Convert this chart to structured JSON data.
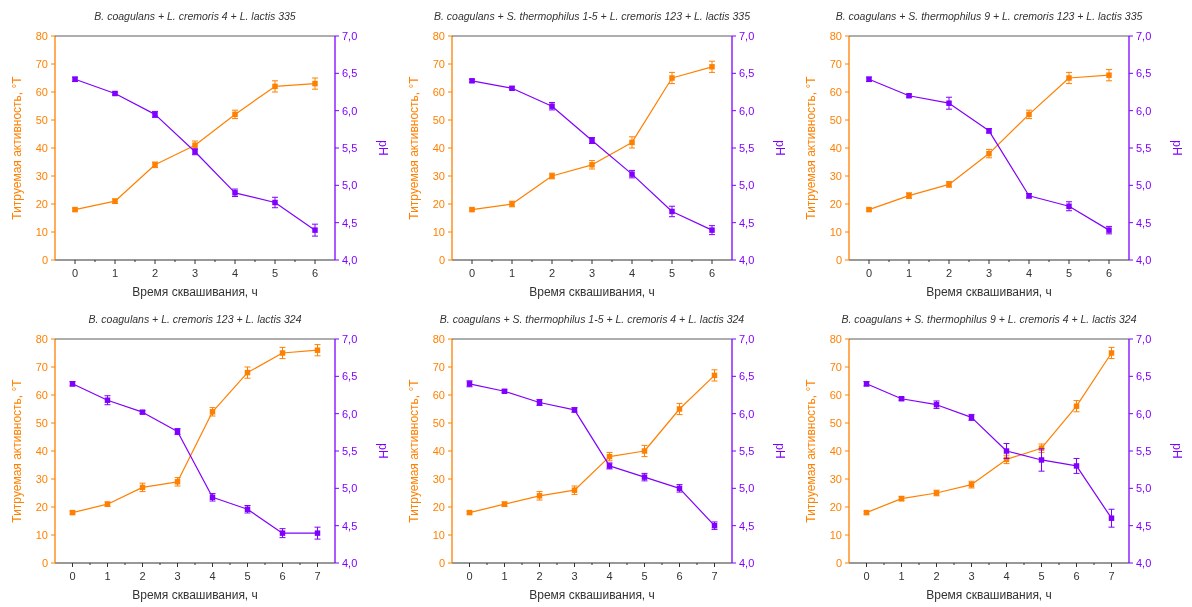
{
  "chart_data": [
    {
      "type": "line",
      "title": "B. coagulans + L. cremoris 4 + L. lactis 335",
      "xlabel": "Время сквашивания, ч",
      "ylabel": "Титруемая активность, °Т",
      "y2label": "pH",
      "x": [
        0,
        1,
        2,
        3,
        4,
        5,
        6
      ],
      "xlim": [
        -0.5,
        6.5
      ],
      "xticks": [
        0,
        1,
        2,
        3,
        4,
        5,
        6
      ],
      "ylim": [
        0,
        80
      ],
      "yticks": [
        0,
        10,
        20,
        30,
        40,
        50,
        60,
        70,
        80
      ],
      "y2lim": [
        4,
        7
      ],
      "y2ticks": [
        {
          "value": 4,
          "label": "4,0"
        },
        {
          "value": 4.5,
          "label": "4,5"
        },
        {
          "value": 5,
          "label": "5,0"
        },
        {
          "value": 5.5,
          "label": "5,5"
        },
        {
          "value": 6,
          "label": "6,0"
        },
        {
          "value": 6.5,
          "label": "6,5"
        },
        {
          "value": 7,
          "label": "7,0"
        }
      ],
      "marker": "square",
      "grid": false,
      "series": [
        {
          "color": "#ff8000",
          "values": [
            18,
            21,
            34,
            41,
            52,
            62,
            63
          ],
          "errors": [
            0.5,
            0.8,
            1,
            1.5,
            1.5,
            2,
            2
          ]
        },
        {
          "color": "#8000ff",
          "axis": "y2",
          "values": [
            6.42,
            6.23,
            5.95,
            5.45,
            4.9,
            4.77,
            4.4
          ],
          "errors": [
            0.03,
            0.02,
            0.04,
            0.04,
            0.05,
            0.07,
            0.08
          ]
        }
      ]
    },
    {
      "type": "line",
      "title": "B. coagulans + S. thermophilus 1-5 + L. cremoris 123 + L. lactis 335",
      "xlabel": "Время сквашивания, ч",
      "ylabel": "Титруемая активность, °Т",
      "y2label": "pH",
      "x": [
        0,
        1,
        2,
        3,
        4,
        5,
        6
      ],
      "xlim": [
        -0.5,
        6.5
      ],
      "xticks": [
        0,
        1,
        2,
        3,
        4,
        5,
        6
      ],
      "ylim": [
        0,
        80
      ],
      "yticks": [
        0,
        10,
        20,
        30,
        40,
        50,
        60,
        70,
        80
      ],
      "y2lim": [
        4,
        7
      ],
      "y2ticks": [
        {
          "value": 4,
          "label": "4,0"
        },
        {
          "value": 4.5,
          "label": "4,5"
        },
        {
          "value": 5,
          "label": "5,0"
        },
        {
          "value": 5.5,
          "label": "5,5"
        },
        {
          "value": 6,
          "label": "6,0"
        },
        {
          "value": 6.5,
          "label": "6,5"
        },
        {
          "value": 7,
          "label": "7,0"
        }
      ],
      "marker": "square",
      "grid": false,
      "series": [
        {
          "color": "#ff8000",
          "values": [
            18,
            20,
            30,
            34,
            42,
            65,
            69
          ],
          "errors": [
            0.5,
            1,
            1,
            1.5,
            2,
            2,
            2
          ]
        },
        {
          "color": "#8000ff",
          "axis": "y2",
          "values": [
            6.4,
            6.3,
            6.06,
            5.6,
            5.15,
            4.65,
            4.4
          ],
          "errors": [
            0.02,
            0.02,
            0.05,
            0.04,
            0.05,
            0.07,
            0.06
          ]
        }
      ]
    },
    {
      "type": "line",
      "title": "B. coagulans + S. thermophilus 9 + L. cremoris 123 + L. lactis 335",
      "xlabel": "Время сквашивания, ч",
      "ylabel": "Титруемая активность, °Т",
      "y2label": "pH",
      "x": [
        0,
        1,
        2,
        3,
        4,
        5,
        6
      ],
      "xlim": [
        -0.5,
        6.5
      ],
      "xticks": [
        0,
        1,
        2,
        3,
        4,
        5,
        6
      ],
      "ylim": [
        0,
        80
      ],
      "yticks": [
        0,
        10,
        20,
        30,
        40,
        50,
        60,
        70,
        80
      ],
      "y2lim": [
        4,
        7
      ],
      "y2ticks": [
        {
          "value": 4,
          "label": "4,0"
        },
        {
          "value": 4.5,
          "label": "4,5"
        },
        {
          "value": 5,
          "label": "5,0"
        },
        {
          "value": 5.5,
          "label": "5,5"
        },
        {
          "value": 6,
          "label": "6,0"
        },
        {
          "value": 6.5,
          "label": "6,5"
        },
        {
          "value": 7,
          "label": "7,0"
        }
      ],
      "marker": "square",
      "grid": false,
      "series": [
        {
          "color": "#ff8000",
          "values": [
            18,
            23,
            27,
            38,
            52,
            65,
            66
          ],
          "errors": [
            0.5,
            1,
            1,
            1.5,
            1.5,
            2,
            2
          ]
        },
        {
          "color": "#8000ff",
          "axis": "y2",
          "values": [
            6.42,
            6.2,
            6.1,
            5.73,
            4.86,
            4.72,
            4.4
          ],
          "errors": [
            0.03,
            0.02,
            0.08,
            0.03,
            0.03,
            0.06,
            0.05
          ]
        }
      ]
    },
    {
      "type": "line",
      "title": "B. coagulans + L. cremoris 123 + L. lactis 324",
      "xlabel": "Время сквашивания, ч",
      "ylabel": "Титруемая активность, °Т",
      "y2label": "pH",
      "x": [
        0,
        1,
        2,
        3,
        4,
        5,
        6,
        7
      ],
      "xlim": [
        -0.5,
        7.5
      ],
      "xticks": [
        0,
        1,
        2,
        3,
        4,
        5,
        6,
        7
      ],
      "ylim": [
        0,
        80
      ],
      "yticks": [
        0,
        10,
        20,
        30,
        40,
        50,
        60,
        70,
        80
      ],
      "y2lim": [
        4,
        7
      ],
      "y2ticks": [
        {
          "value": 4,
          "label": "4,0"
        },
        {
          "value": 4.5,
          "label": "4,5"
        },
        {
          "value": 5,
          "label": "5,0"
        },
        {
          "value": 5.5,
          "label": "5,5"
        },
        {
          "value": 6,
          "label": "6,0"
        },
        {
          "value": 6.5,
          "label": "6,5"
        },
        {
          "value": 7,
          "label": "7,0"
        }
      ],
      "marker": "square",
      "grid": false,
      "series": [
        {
          "color": "#ff8000",
          "values": [
            18,
            21,
            27,
            29,
            54,
            68,
            75,
            76
          ],
          "errors": [
            0.5,
            0.8,
            1.5,
            1.5,
            1.5,
            2,
            2,
            2
          ]
        },
        {
          "color": "#8000ff",
          "axis": "y2",
          "values": [
            6.4,
            6.18,
            6.02,
            5.76,
            4.88,
            4.72,
            4.4,
            4.4
          ],
          "errors": [
            0.03,
            0.06,
            0.02,
            0.04,
            0.05,
            0.05,
            0.06,
            0.08
          ]
        }
      ]
    },
    {
      "type": "line",
      "title": "B. coagulans + S. thermophilus 1-5 + L. cremoris 4 + L. lactis 324",
      "xlabel": "Время сквашивания, ч",
      "ylabel": "Титруемая активность, °Т",
      "y2label": "pH",
      "x": [
        0,
        1,
        2,
        3,
        4,
        5,
        6,
        7
      ],
      "xlim": [
        -0.5,
        7.5
      ],
      "xticks": [
        0,
        1,
        2,
        3,
        4,
        5,
        6,
        7
      ],
      "ylim": [
        0,
        80
      ],
      "yticks": [
        0,
        10,
        20,
        30,
        40,
        50,
        60,
        70,
        80
      ],
      "y2lim": [
        4,
        7
      ],
      "y2ticks": [
        {
          "value": 4,
          "label": "4,0"
        },
        {
          "value": 4.5,
          "label": "4,5"
        },
        {
          "value": 5,
          "label": "5,0"
        },
        {
          "value": 5.5,
          "label": "5,5"
        },
        {
          "value": 6,
          "label": "6,0"
        },
        {
          "value": 6.5,
          "label": "6,5"
        },
        {
          "value": 7,
          "label": "7,0"
        }
      ],
      "marker": "square",
      "grid": false,
      "series": [
        {
          "color": "#ff8000",
          "values": [
            18,
            21,
            24,
            26,
            38,
            40,
            55,
            67
          ],
          "errors": [
            0.5,
            0.8,
            1.5,
            1.5,
            1.5,
            2,
            2,
            2
          ]
        },
        {
          "color": "#8000ff",
          "axis": "y2",
          "values": [
            6.4,
            6.3,
            6.15,
            6.05,
            5.3,
            5.15,
            5.0,
            4.5
          ],
          "errors": [
            0.04,
            0.02,
            0.04,
            0.03,
            0.04,
            0.05,
            0.05,
            0.05
          ]
        }
      ]
    },
    {
      "type": "line",
      "title": "B. coagulans + S. thermophilus 9 + L. cremoris 4 + L. lactis 324",
      "xlabel": "Время сквашивания, ч",
      "ylabel": "Титруемая активность, °Т",
      "y2label": "pH",
      "x": [
        0,
        1,
        2,
        3,
        4,
        5,
        6,
        7
      ],
      "xlim": [
        -0.5,
        7.5
      ],
      "xticks": [
        0,
        1,
        2,
        3,
        4,
        5,
        6,
        7
      ],
      "ylim": [
        0,
        80
      ],
      "yticks": [
        0,
        10,
        20,
        30,
        40,
        50,
        60,
        70,
        80
      ],
      "y2lim": [
        4,
        7
      ],
      "y2ticks": [
        {
          "value": 4,
          "label": "4,0"
        },
        {
          "value": 4.5,
          "label": "4,5"
        },
        {
          "value": 5,
          "label": "5,0"
        },
        {
          "value": 5.5,
          "label": "5,5"
        },
        {
          "value": 6,
          "label": "6,0"
        },
        {
          "value": 6.5,
          "label": "6,5"
        },
        {
          "value": 7,
          "label": "7,0"
        }
      ],
      "marker": "square",
      "grid": false,
      "series": [
        {
          "color": "#ff8000",
          "values": [
            18,
            23,
            25,
            28,
            37,
            41,
            56,
            75
          ],
          "errors": [
            0.5,
            0.8,
            1,
            1.2,
            1.5,
            1.5,
            2,
            2
          ]
        },
        {
          "color": "#8000ff",
          "axis": "y2",
          "values": [
            6.4,
            6.2,
            6.12,
            5.95,
            5.5,
            5.38,
            5.3,
            4.6
          ],
          "errors": [
            0.03,
            0.02,
            0.05,
            0.04,
            0.1,
            0.15,
            0.1,
            0.12
          ]
        }
      ]
    }
  ]
}
